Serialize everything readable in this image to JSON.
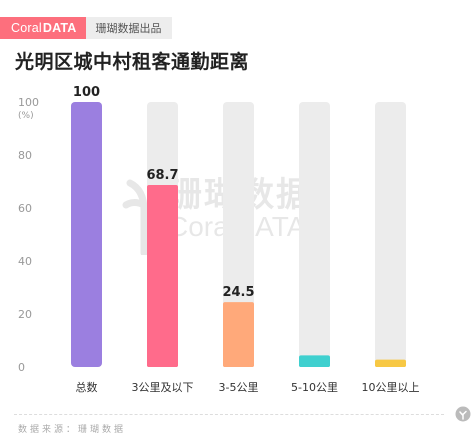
{
  "brand": {
    "logo_prefix": "Coral",
    "logo_suffix": "DATA",
    "name": "珊瑚数据出品"
  },
  "title": "光明区城中村租客通勤距离",
  "watermark": {
    "text": "珊瑚数据",
    "sub": "CoralDATA"
  },
  "footer": {
    "source": "数据来源：珊瑚数据"
  },
  "colors": {
    "track": "#ececec",
    "bars": [
      "#9b7fe0",
      "#ff6b8b",
      "#ffa97a",
      "#3fd0cf",
      "#f7c844"
    ]
  },
  "chart_data": {
    "type": "bar",
    "title": "光明区城中村租客通勤距离",
    "categories": [
      "总数",
      "3公里及以下",
      "3-5公里",
      "5-10公里",
      "10公里以上"
    ],
    "values": [
      100,
      68.7,
      24.5,
      4.4,
      2.8
    ],
    "value_labels": [
      "100",
      "68.7",
      "24.5",
      "",
      ""
    ],
    "y_unit": "(%)",
    "ylim": [
      0,
      100
    ],
    "yticks": [
      0,
      20,
      40,
      60,
      80,
      100
    ],
    "grid": false
  }
}
